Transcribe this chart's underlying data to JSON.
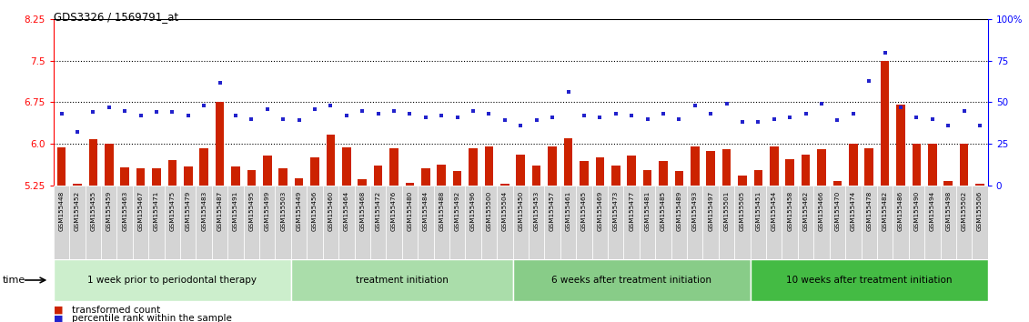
{
  "title": "GDS3326 / 1569791_at",
  "samples": [
    "GSM155448",
    "GSM155452",
    "GSM155455",
    "GSM155459",
    "GSM155463",
    "GSM155467",
    "GSM155471",
    "GSM155475",
    "GSM155479",
    "GSM155483",
    "GSM155487",
    "GSM155491",
    "GSM155495",
    "GSM155499",
    "GSM155503",
    "GSM155449",
    "GSM155456",
    "GSM155460",
    "GSM155464",
    "GSM155468",
    "GSM155472",
    "GSM155476",
    "GSM155480",
    "GSM155484",
    "GSM155488",
    "GSM155492",
    "GSM155496",
    "GSM155500",
    "GSM155504",
    "GSM155450",
    "GSM155453",
    "GSM155457",
    "GSM155461",
    "GSM155465",
    "GSM155469",
    "GSM155473",
    "GSM155477",
    "GSM155481",
    "GSM155485",
    "GSM155489",
    "GSM155493",
    "GSM155497",
    "GSM155501",
    "GSM155505",
    "GSM155451",
    "GSM155454",
    "GSM155458",
    "GSM155462",
    "GSM155466",
    "GSM155470",
    "GSM155474",
    "GSM155478",
    "GSM155482",
    "GSM155486",
    "GSM155490",
    "GSM155494",
    "GSM155498",
    "GSM155502",
    "GSM155506"
  ],
  "bar_values": [
    5.93,
    5.27,
    6.08,
    6.0,
    5.57,
    5.55,
    5.55,
    5.71,
    5.59,
    5.92,
    6.75,
    5.58,
    5.53,
    5.79,
    5.55,
    5.37,
    5.76,
    6.17,
    5.93,
    5.35,
    5.6,
    5.92,
    5.3,
    5.55,
    5.62,
    5.51,
    5.92,
    5.95,
    5.27,
    5.8,
    5.6,
    5.95,
    6.1,
    5.68,
    5.75,
    5.6,
    5.78,
    5.52,
    5.68,
    5.5,
    5.95,
    5.87,
    5.9,
    5.42,
    5.53,
    5.95,
    5.72,
    5.81,
    5.9,
    5.33,
    6.0,
    5.92,
    7.5,
    6.7,
    6.0,
    6.0,
    5.32,
    6.0,
    5.27
  ],
  "dot_pct": [
    43,
    32,
    44,
    47,
    45,
    42,
    44,
    44,
    42,
    48,
    62,
    42,
    40,
    46,
    40,
    39,
    46,
    48,
    42,
    45,
    43,
    45,
    43,
    41,
    42,
    41,
    45,
    43,
    39,
    36,
    39,
    41,
    56,
    42,
    41,
    43,
    42,
    40,
    43,
    40,
    48,
    43,
    49,
    38,
    38,
    40,
    41,
    43,
    49,
    39,
    43,
    63,
    80,
    47,
    41,
    40,
    36,
    45,
    36
  ],
  "groups": [
    {
      "label": "1 week prior to periodontal therapy",
      "start": 0,
      "end": 15,
      "color": "#cceecc"
    },
    {
      "label": "treatment initiation",
      "start": 15,
      "end": 29,
      "color": "#aaddaa"
    },
    {
      "label": "6 weeks after treatment initiation",
      "start": 29,
      "end": 44,
      "color": "#88cc88"
    },
    {
      "label": "10 weeks after treatment initiation",
      "start": 44,
      "end": 59,
      "color": "#44bb44"
    }
  ],
  "ylim_left": [
    5.25,
    8.25
  ],
  "ylim_right": [
    0,
    100
  ],
  "yticks_left": [
    5.25,
    6.0,
    6.75,
    7.5,
    8.25
  ],
  "yticks_right": [
    0,
    25,
    50,
    75,
    100
  ],
  "bar_color": "#cc2200",
  "dot_color": "#2222cc",
  "xtick_bg": "#d8d8d8",
  "legend_bar": "transformed count",
  "legend_dot": "percentile rank within the sample"
}
